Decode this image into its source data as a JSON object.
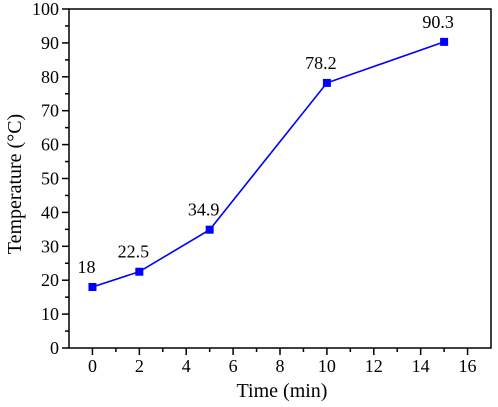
{
  "chart_data": {
    "type": "line",
    "title": "",
    "xlabel": "Time (min)",
    "ylabel": "Temperature (°C)",
    "xlim": [
      -1,
      17
    ],
    "ylim": [
      0,
      100
    ],
    "x_ticks": [
      0,
      2,
      4,
      6,
      8,
      10,
      12,
      14,
      16
    ],
    "y_ticks": [
      0,
      10,
      20,
      30,
      40,
      50,
      60,
      70,
      80,
      90,
      100
    ],
    "grid": false,
    "legend": "none",
    "series": [
      {
        "x": [
          0,
          2,
          5,
          10,
          15
        ],
        "y": [
          18,
          22.5,
          34.9,
          78.2,
          90.3
        ],
        "labels": [
          "18",
          "22.5",
          "34.9",
          "78.2",
          "90.3"
        ],
        "color": "#0000ff",
        "marker": "square"
      }
    ]
  }
}
